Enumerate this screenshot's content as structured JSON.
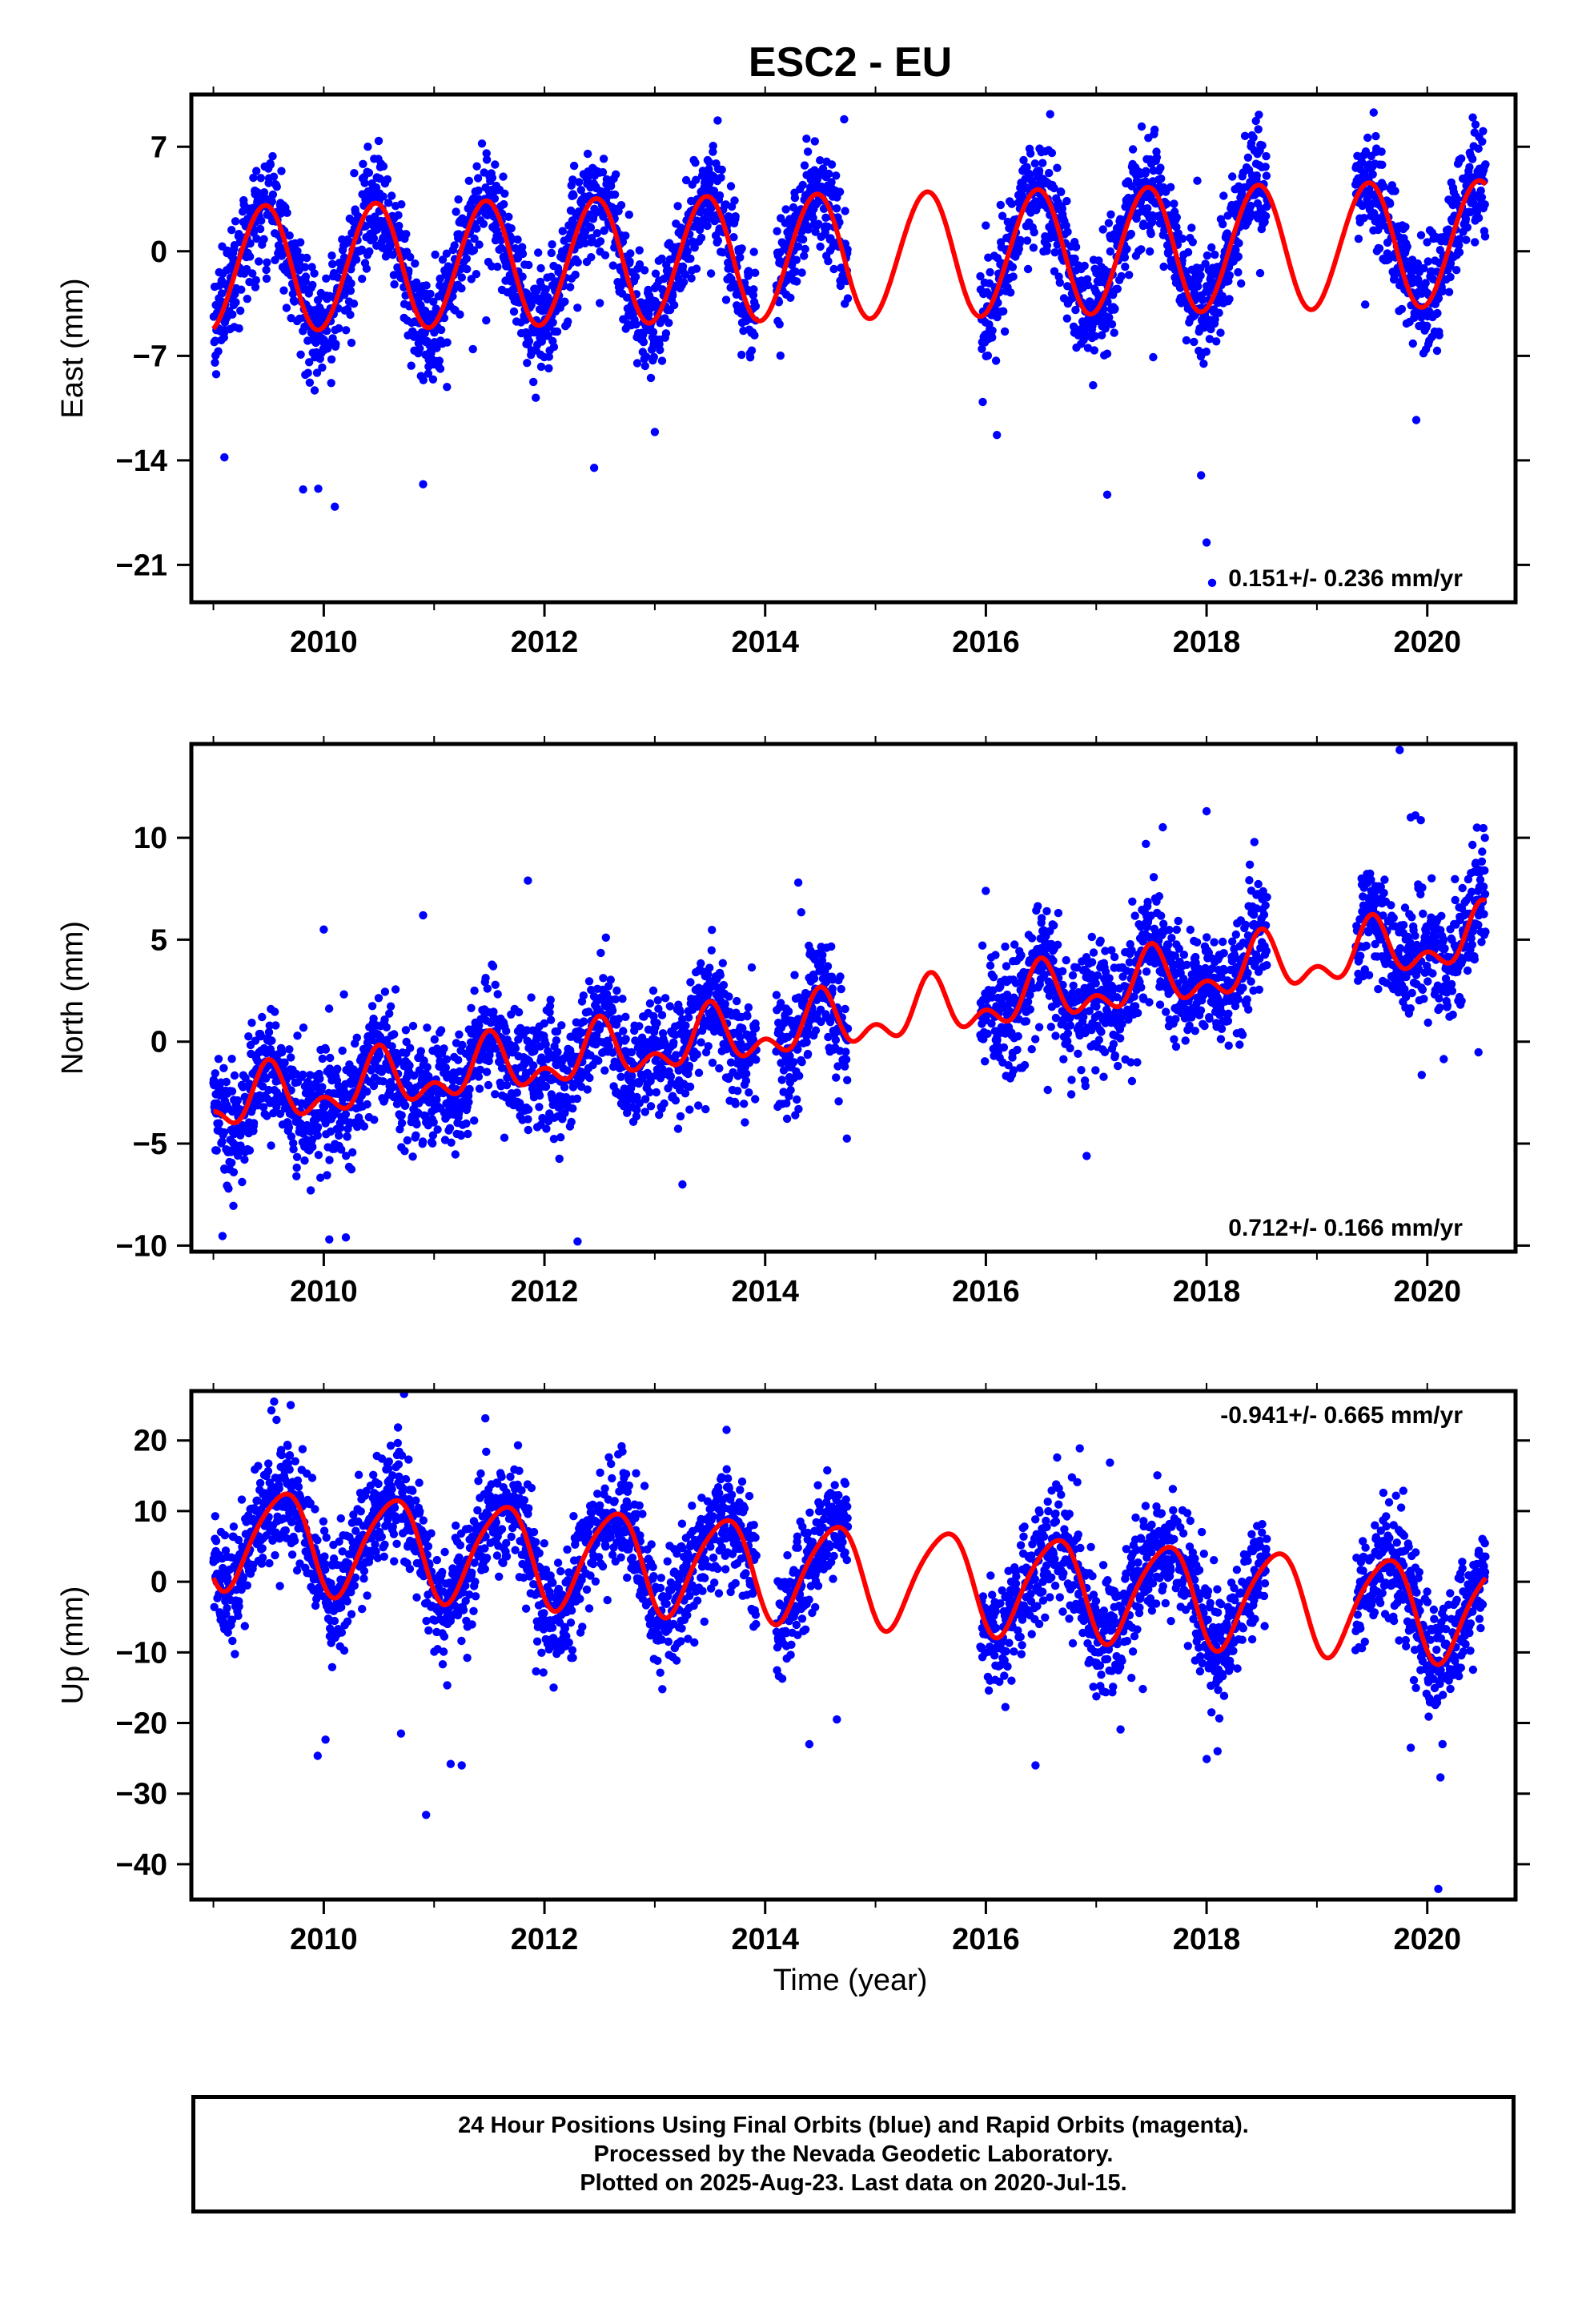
{
  "title": "ESC2 - EU",
  "xlabel": "Time (year)",
  "colors": {
    "points": "#0000ff",
    "model": "#ff0000",
    "axis": "#000000"
  },
  "caption": [
    "24 Hour Positions Using Final Orbits (blue) and Rapid Orbits (magenta).",
    "Processed by the Nevada Geodetic Laboratory.",
    "Plotted on 2025-Aug-23. Last data on 2020-Jul-15."
  ],
  "chart_data": [
    {
      "type": "scatter",
      "ylabel": "East (mm)",
      "rate_label": "0.151+/- 0.236 mm/yr",
      "xlim": [
        2008.8,
        2020.8
      ],
      "ylim": [
        -23.5,
        10.5
      ],
      "xticks": [
        2010,
        2012,
        2014,
        2016,
        2018,
        2020
      ],
      "yticks": [
        7,
        0,
        -7,
        -14,
        -21
      ],
      "grid": false,
      "model": {
        "offset": -0.3,
        "rate": 0.151,
        "t0": 2014.8,
        "amp1": 4.2,
        "peak1": 0.46,
        "amp2": 0.15,
        "peak2": 0.1
      },
      "noise": 1.8,
      "data_segments": [
        [
          2009.0,
          2013.92
        ],
        [
          2014.1,
          2014.75
        ],
        [
          2015.95,
          2018.55
        ],
        [
          2019.35,
          2020.53
        ]
      ],
      "outliers": [
        [
          2009.1,
          -13.8
        ],
        [
          2009.95,
          -15.9
        ],
        [
          2010.1,
          -17.1
        ],
        [
          2010.9,
          -15.6
        ],
        [
          2012.45,
          -14.5
        ],
        [
          2017.1,
          -16.3
        ],
        [
          2017.95,
          -15.0
        ],
        [
          2018.0,
          -19.5
        ],
        [
          2018.05,
          -22.2
        ],
        [
          2013.0,
          -12.1
        ],
        [
          2016.1,
          -12.3
        ],
        [
          2019.9,
          -11.3
        ]
      ],
      "rapid_points": []
    },
    {
      "type": "scatter",
      "ylabel": "North (mm)",
      "rate_label": "0.712+/- 0.166 mm/yr",
      "xlim": [
        2008.8,
        2020.8
      ],
      "ylim": [
        -10.3,
        14.6
      ],
      "xticks": [
        2010,
        2012,
        2014,
        2016,
        2018,
        2020
      ],
      "yticks": [
        10,
        5,
        0,
        -5,
        -10
      ],
      "grid": false,
      "model": {
        "offset": 1.0,
        "rate": 0.712,
        "t0": 2014.8,
        "amp1": 1.1,
        "peak1": 0.5,
        "amp2": 0.8,
        "peak2": 0.0
      },
      "noise": 1.4,
      "data_segments": [
        [
          2009.0,
          2013.92
        ],
        [
          2014.1,
          2014.75
        ],
        [
          2015.95,
          2018.55
        ],
        [
          2019.35,
          2020.53
        ]
      ],
      "outliers": [
        [
          2010.2,
          -9.6
        ],
        [
          2010.05,
          -9.7
        ],
        [
          2011.85,
          7.9
        ],
        [
          2012.3,
          -9.8
        ],
        [
          2014.3,
          7.8
        ],
        [
          2017.45,
          9.7
        ],
        [
          2018.0,
          11.3
        ],
        [
          2019.75,
          14.3
        ],
        [
          2019.85,
          11.0
        ],
        [
          2020.45,
          10.5
        ],
        [
          2010.0,
          5.5
        ],
        [
          2010.9,
          6.2
        ],
        [
          2013.25,
          -7.0
        ]
      ],
      "rapid_points": []
    },
    {
      "type": "scatter",
      "ylabel": "Up (mm)",
      "rate_label": "-0.941+/- 0.665 mm/yr",
      "xlim": [
        2008.8,
        2020.8
      ],
      "ylim": [
        -45,
        27
      ],
      "xticks": [
        2010,
        2012,
        2014,
        2016,
        2018,
        2020
      ],
      "yticks": [
        20,
        10,
        0,
        -10,
        -20,
        -30,
        -40
      ],
      "grid": false,
      "model": {
        "offset": 1.0,
        "rate": -0.941,
        "t0": 2014.8,
        "amp1": 7.0,
        "peak1": 0.62,
        "amp2": 1.0,
        "peak2": 0.3
      },
      "noise": 4.0,
      "data_segments": [
        [
          2009.0,
          2013.92
        ],
        [
          2014.1,
          2014.75
        ],
        [
          2015.95,
          2018.55
        ],
        [
          2019.35,
          2020.53
        ]
      ],
      "outliers": [
        [
          2009.55,
          25.5
        ],
        [
          2009.7,
          25.0
        ],
        [
          2010.7,
          -21.5
        ],
        [
          2011.15,
          -25.8
        ],
        [
          2011.25,
          -26.0
        ],
        [
          2013.65,
          21.5
        ],
        [
          2014.4,
          -23.0
        ],
        [
          2016.45,
          -26.0
        ],
        [
          2018.1,
          -24.0
        ],
        [
          2020.1,
          -43.5
        ],
        [
          2019.85,
          -23.5
        ],
        [
          2014.65,
          -19.5
        ]
      ],
      "rapid_points": []
    }
  ]
}
